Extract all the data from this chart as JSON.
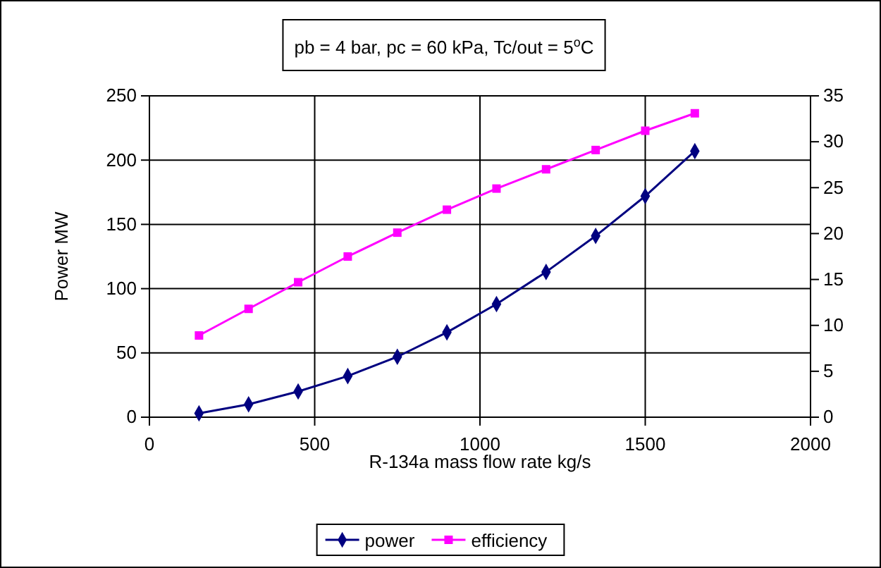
{
  "chart_data": {
    "type": "line",
    "title": "pb = 4 bar, pc = 60 kPa, Tc/out = 5$^{o}$C",
    "xlabel": "R-134a mass flow rate kg/s",
    "ylabel": "Power MW",
    "x": [
      150,
      300,
      450,
      600,
      750,
      900,
      1050,
      1200,
      1350,
      1500,
      1650
    ],
    "series": [
      {
        "name": "power",
        "color": "#000080",
        "marker": "diamond",
        "values": [
          3,
          10,
          20,
          32,
          47,
          66,
          88,
          113,
          141,
          172,
          207
        ]
      },
      {
        "name": "efficiency",
        "color": "#ff00ff",
        "marker": "square",
        "axis": "y2",
        "values": [
          8.9,
          11.8,
          14.7,
          17.5,
          20.1,
          22.6,
          24.9,
          27.0,
          29.1,
          31.2,
          33.1
        ]
      }
    ],
    "xlim": [
      0,
      2000
    ],
    "xticks": [
      0,
      500,
      1000,
      1500,
      2000
    ],
    "ylim": [
      0,
      250
    ],
    "yticks": [
      0,
      50,
      100,
      150,
      200,
      250
    ],
    "y2lim": [
      0,
      35
    ],
    "y2ticks": [
      0,
      5,
      10,
      15,
      20,
      25,
      30,
      35
    ],
    "grid": true,
    "legend": "bottom"
  }
}
